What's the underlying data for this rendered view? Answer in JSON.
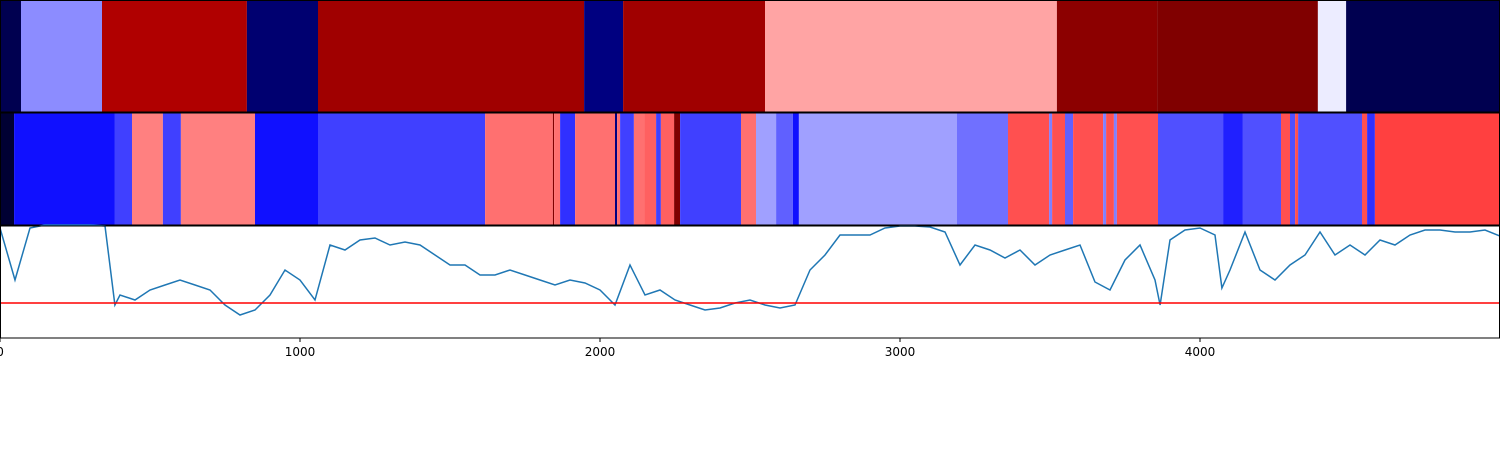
{
  "chart_data": [
    {
      "type": "strip",
      "xlim": [
        0,
        5000
      ],
      "edges": [
        0,
        70,
        340,
        823,
        1060,
        1947,
        2077,
        2550,
        3523,
        3857,
        4393,
        4487,
        5000
      ],
      "colors": [
        "#000050",
        "#8c8cff",
        "#b00000",
        "#000070",
        "#a00000",
        "#000080",
        "#a00000",
        "#ffa4a4",
        "#8c0000",
        "#800000",
        "#ececff",
        "#000050"
      ]
    },
    {
      "type": "strip",
      "xlim": [
        0,
        5000
      ],
      "edges": [
        0,
        47,
        383,
        440,
        543,
        603,
        850,
        1060,
        1617,
        1843,
        1847,
        1867,
        1917,
        2050,
        2057,
        2067,
        2113,
        2147,
        2187,
        2203,
        2247,
        2267,
        2470,
        2520,
        2587,
        2643,
        2663,
        3190,
        3360,
        3497,
        3507,
        3550,
        3577,
        3677,
        3687,
        3713,
        3723,
        3860,
        4077,
        4143,
        4270,
        4300,
        4317,
        4327,
        4540,
        4557,
        4583,
        5000
      ],
      "colors": [
        "#000033",
        "#1010ff",
        "#4040ff",
        "#ff8080",
        "#4040ff",
        "#ff8080",
        "#1010ff",
        "#4040ff",
        "#ff7070",
        "#800000",
        "#ff7070",
        "#3030ff",
        "#ff7070",
        "#000080",
        "#ff7070",
        "#4040ff",
        "#ff7070",
        "#ff6060",
        "#4040ff",
        "#ff6060",
        "#800000",
        "#4040ff",
        "#ff7070",
        "#a0a0ff",
        "#6060ff",
        "#1010ff",
        "#a0a0ff",
        "#7070ff",
        "#ff5050",
        "#8080ff",
        "#ff5050",
        "#6060ff",
        "#ff5050",
        "#8080ff",
        "#ff5050",
        "#8080ff",
        "#ff5050",
        "#5050ff",
        "#2020ff",
        "#5050ff",
        "#ff5050",
        "#5050ff",
        "#ff5050",
        "#5050ff",
        "#ff5050",
        "#3030ff",
        "#ff4040"
      ]
    },
    {
      "type": "line",
      "xlim": [
        0,
        5000
      ],
      "ylim": [
        0,
        112
      ],
      "color": "#1f77b4",
      "hline": 35,
      "hline_color": "#ff0000",
      "xticks": [
        0,
        1000,
        2000,
        3000,
        4000
      ],
      "x": [
        0,
        50,
        100,
        150,
        200,
        250,
        300,
        350,
        383,
        400,
        450,
        500,
        550,
        600,
        650,
        700,
        750,
        800,
        850,
        900,
        950,
        1000,
        1050,
        1100,
        1150,
        1200,
        1250,
        1300,
        1350,
        1400,
        1450,
        1500,
        1550,
        1600,
        1650,
        1700,
        1750,
        1800,
        1850,
        1900,
        1950,
        2000,
        2050,
        2100,
        2150,
        2200,
        2250,
        2300,
        2350,
        2400,
        2450,
        2500,
        2550,
        2600,
        2650,
        2700,
        2750,
        2800,
        2850,
        2900,
        2950,
        3000,
        3050,
        3100,
        3150,
        3200,
        3250,
        3300,
        3350,
        3400,
        3450,
        3500,
        3550,
        3600,
        3650,
        3700,
        3750,
        3800,
        3850,
        3867,
        3900,
        3950,
        4000,
        4050,
        4073,
        4100,
        4150,
        4200,
        4250,
        4300,
        4350,
        4400,
        4450,
        4500,
        4550,
        4600,
        4650,
        4700,
        4750,
        4800,
        4850,
        4900,
        4950,
        5000
      ],
      "values": [
        110,
        58,
        110,
        113,
        113,
        113,
        113,
        112,
        33,
        43,
        38,
        48,
        53,
        58,
        53,
        48,
        33,
        23,
        28,
        43,
        68,
        58,
        38,
        93,
        88,
        98,
        100,
        93,
        96,
        93,
        83,
        73,
        73,
        63,
        63,
        68,
        63,
        58,
        53,
        58,
        55,
        48,
        33,
        73,
        43,
        48,
        38,
        33,
        28,
        30,
        35,
        38,
        33,
        30,
        33,
        68,
        83,
        103,
        103,
        103,
        110,
        112,
        112,
        111,
        106,
        73,
        93,
        88,
        80,
        88,
        73,
        83,
        88,
        93,
        56,
        48,
        78,
        93,
        58,
        33,
        98,
        108,
        110,
        103,
        50,
        68,
        106,
        68,
        58,
        73,
        83,
        106,
        83,
        93,
        83,
        98,
        93,
        103,
        108,
        108,
        106,
        106,
        108,
        102
      ]
    }
  ]
}
